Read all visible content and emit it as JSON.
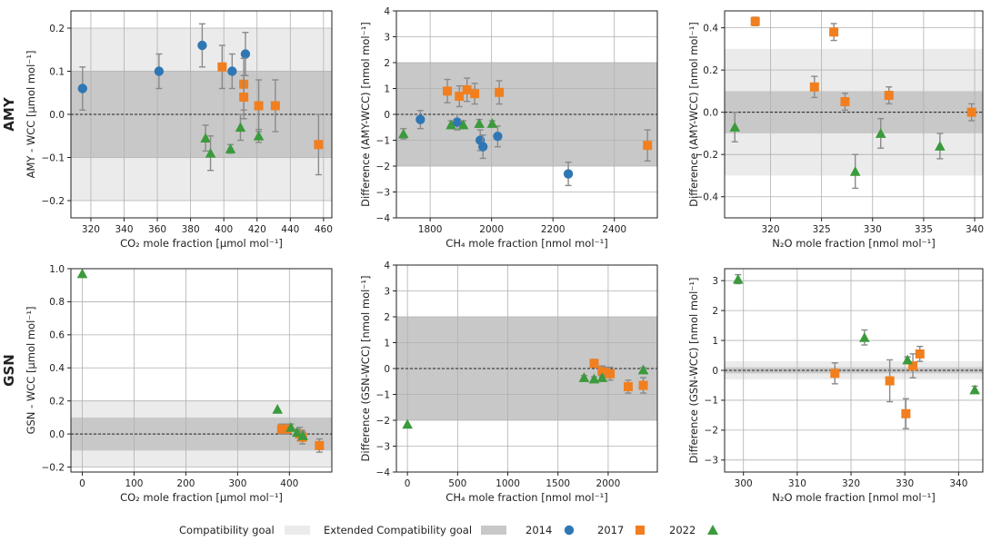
{
  "figure": {
    "row_labels": [
      "AMY",
      "GSN"
    ],
    "colors": {
      "compat_band": "#ebebeb",
      "ext_band": "#c8c8c8",
      "grid": "#b0b0b0",
      "s2014": "#2f77b4",
      "s2017": "#f17f1f",
      "s2022": "#3b9a3b",
      "errorbar": "#8a8a8a"
    },
    "legend": {
      "compat": "Compatibility goal",
      "ext": "Extended Compatibility goal",
      "y2014": "2014",
      "y2017": "2017",
      "y2022": "2022"
    }
  },
  "chart_data": [
    {
      "id": "amy-co2",
      "type": "scatter",
      "ylabel": "AMY - WCC [μmol mol⁻¹]",
      "xlabel": "CO₂ mole fraction [μmol mol⁻¹]",
      "xlim": [
        308,
        465
      ],
      "ylim": [
        -0.24,
        0.24
      ],
      "xticks": [
        320,
        340,
        360,
        380,
        400,
        420,
        440,
        460
      ],
      "yticks": [
        -0.2,
        -0.1,
        0.0,
        0.1,
        0.2
      ],
      "ytick_labels": [
        "−0.2",
        "−0.1",
        "0.0",
        "0.1",
        "0.2"
      ],
      "bands": {
        "compat": 0.2,
        "ext": 0.1
      },
      "series": [
        {
          "name": "2014",
          "marker": "circle",
          "points": [
            [
              315,
              0.06,
              0.05
            ],
            [
              361,
              0.1,
              0.04
            ],
            [
              387,
              0.16,
              0.05
            ],
            [
              405,
              0.1,
              0.04
            ],
            [
              413,
              0.14,
              0.05
            ]
          ]
        },
        {
          "name": "2017",
          "marker": "square",
          "points": [
            [
              399,
              0.11,
              0.05
            ],
            [
              412,
              0.07,
              0.06
            ],
            [
              412,
              0.04,
              0.05
            ],
            [
              421,
              0.02,
              0.06
            ],
            [
              431,
              0.02,
              0.06
            ],
            [
              457,
              -0.07,
              0.07
            ]
          ]
        },
        {
          "name": "2022",
          "marker": "triangle",
          "points": [
            [
              389,
              -0.055,
              0.03
            ],
            [
              392,
              -0.09,
              0.04
            ],
            [
              404,
              -0.08,
              0.01
            ],
            [
              410,
              -0.03,
              0.03
            ],
            [
              421,
              -0.05,
              0.015
            ]
          ]
        }
      ]
    },
    {
      "id": "amy-ch4",
      "type": "scatter",
      "ylabel": "Difference (AMY-WCC) [nmol mol⁻¹]",
      "xlabel": "CH₄ mole fraction [nmol mol⁻¹]",
      "xlim": [
        1690,
        2540
      ],
      "ylim": [
        -4,
        4
      ],
      "xticks": [
        1800,
        2000,
        2200,
        2400
      ],
      "yticks": [
        -4,
        -3,
        -2,
        -1,
        0,
        1,
        2,
        3,
        4
      ],
      "ytick_labels": [
        "−4",
        "−3",
        "−2",
        "−1",
        "0",
        "1",
        "2",
        "3",
        "4"
      ],
      "bands": {
        "compat": 2,
        "ext": 2
      },
      "series": [
        {
          "name": "2014",
          "marker": "circle",
          "points": [
            [
              1768,
              -0.2,
              0.35
            ],
            [
              1888,
              -0.3,
              0.3
            ],
            [
              1963,
              -1.0,
              0.4
            ],
            [
              1972,
              -1.25,
              0.45
            ],
            [
              2020,
              -0.85,
              0.4
            ],
            [
              2250,
              -2.3,
              0.45
            ]
          ]
        },
        {
          "name": "2017",
          "marker": "square",
          "points": [
            [
              1856,
              0.9,
              0.45
            ],
            [
              1895,
              0.7,
              0.4
            ],
            [
              1920,
              0.95,
              0.45
            ],
            [
              1945,
              0.8,
              0.4
            ],
            [
              2025,
              0.85,
              0.45
            ],
            [
              2508,
              -1.2,
              0.6
            ]
          ]
        },
        {
          "name": "2022",
          "marker": "triangle",
          "points": [
            [
              1713,
              -0.75,
              0.2
            ],
            [
              1868,
              -0.4,
              0.15
            ],
            [
              1908,
              -0.4,
              0.15
            ],
            [
              1960,
              -0.35,
              0.15
            ],
            [
              2002,
              -0.35,
              0.1
            ]
          ]
        }
      ]
    },
    {
      "id": "amy-n2o",
      "type": "scatter",
      "ylabel": "Difference (AMY-WCC) [nmol mol⁻¹]",
      "xlabel": "N₂O mole fraction [nmol mol⁻¹]",
      "xlim": [
        315.5,
        340.8
      ],
      "ylim": [
        -0.5,
        0.48
      ],
      "xticks": [
        320,
        325,
        330,
        335,
        340
      ],
      "yticks": [
        -0.4,
        -0.2,
        0.0,
        0.2,
        0.4
      ],
      "ytick_labels": [
        "−0.4",
        "−0.2",
        "0.0",
        "0.2",
        "0.4"
      ],
      "bands": {
        "compat": 0.3,
        "ext": 0.1
      },
      "series": [
        {
          "name": "2017",
          "marker": "square",
          "points": [
            [
              318.5,
              0.43,
              0.02
            ],
            [
              324.3,
              0.12,
              0.05
            ],
            [
              326.2,
              0.38,
              0.04
            ],
            [
              327.3,
              0.05,
              0.04
            ],
            [
              331.6,
              0.08,
              0.04
            ],
            [
              339.7,
              0.0,
              0.04
            ]
          ]
        },
        {
          "name": "2022",
          "marker": "triangle",
          "points": [
            [
              316.5,
              -0.07,
              0.07
            ],
            [
              328.3,
              -0.28,
              0.08
            ],
            [
              330.8,
              -0.1,
              0.07
            ],
            [
              336.6,
              -0.16,
              0.06
            ]
          ]
        }
      ]
    },
    {
      "id": "gsn-co2",
      "type": "scatter",
      "ylabel": "GSN - WCC [μmol mol⁻¹]",
      "xlabel": "CO₂ mole fraction [μmol mol⁻¹]",
      "xlim": [
        -22,
        482
      ],
      "ylim": [
        -0.23,
        1.0
      ],
      "xticks": [
        0,
        100,
        200,
        300,
        400
      ],
      "yticks": [
        -0.2,
        0.0,
        0.2,
        0.4,
        0.6,
        0.8,
        1.0
      ],
      "ytick_labels": [
        "−0.2",
        "0.0",
        "0.2",
        "0.4",
        "0.6",
        "0.8",
        "1.0"
      ],
      "bands": {
        "compat": 0.2,
        "ext": 0.1
      },
      "series": [
        {
          "name": "2017",
          "marker": "square",
          "points": [
            [
              385,
              0.03,
              0.03
            ],
            [
              395,
              0.03,
              0.03
            ],
            [
              420,
              0.0,
              0.04
            ],
            [
              425,
              -0.02,
              0.04
            ],
            [
              458,
              -0.07,
              0.04
            ]
          ]
        },
        {
          "name": "2022",
          "marker": "triangle",
          "points": [
            [
              0,
              0.97,
              0.0
            ],
            [
              377,
              0.15,
              0.0
            ],
            [
              403,
              0.04,
              0.02
            ],
            [
              415,
              0.01,
              0.02
            ],
            [
              426,
              -0.01,
              0.02
            ]
          ]
        }
      ]
    },
    {
      "id": "gsn-ch4",
      "type": "scatter",
      "ylabel": "Difference (GSN-WCC) [nmol mol⁻¹]",
      "xlabel": "CH₄ mole fraction [nmol mol⁻¹]",
      "xlim": [
        -110,
        2490
      ],
      "ylim": [
        -4,
        4
      ],
      "xticks": [
        0,
        500,
        1000,
        1500,
        2000
      ],
      "yticks": [
        -4,
        -3,
        -2,
        -1,
        0,
        1,
        2,
        3,
        4
      ],
      "ytick_labels": [
        "−4",
        "−3",
        "−2",
        "−1",
        "0",
        "1",
        "2",
        "3",
        "4"
      ],
      "bands": {
        "compat": 2,
        "ext": 2
      },
      "series": [
        {
          "name": "2017",
          "marker": "square",
          "points": [
            [
              1860,
              0.2,
              0.15
            ],
            [
              1940,
              -0.1,
              0.2
            ],
            [
              1980,
              -0.15,
              0.2
            ],
            [
              2020,
              -0.2,
              0.25
            ],
            [
              2200,
              -0.7,
              0.25
            ],
            [
              2350,
              -0.65,
              0.3
            ]
          ]
        },
        {
          "name": "2022",
          "marker": "triangle",
          "points": [
            [
              0,
              -2.15,
              0.0
            ],
            [
              1760,
              -0.35,
              0.08
            ],
            [
              1860,
              -0.4,
              0.08
            ],
            [
              1940,
              -0.35,
              0.08
            ],
            [
              2350,
              -0.05,
              0.08
            ]
          ]
        }
      ]
    },
    {
      "id": "gsn-n2o",
      "type": "scatter",
      "ylabel": "Difference (GSN-WCC) [nmol mol⁻¹]",
      "xlabel": "N₂O mole fraction [nmol mol⁻¹]",
      "xlim": [
        296.5,
        344.5
      ],
      "ylim": [
        -3.4,
        3.4
      ],
      "xticks": [
        300,
        310,
        320,
        330,
        340
      ],
      "yticks": [
        -3,
        -2,
        -1,
        0,
        1,
        2,
        3
      ],
      "ytick_labels": [
        "−3",
        "−2",
        "−1",
        "0",
        "1",
        "2",
        "3"
      ],
      "bands": {
        "compat": 0.3,
        "ext": 0.1
      },
      "series": [
        {
          "name": "2017",
          "marker": "square",
          "points": [
            [
              317.0,
              -0.1,
              0.35
            ],
            [
              327.2,
              -0.35,
              0.7
            ],
            [
              330.2,
              -1.45,
              0.5
            ],
            [
              331.5,
              0.15,
              0.4
            ],
            [
              332.8,
              0.55,
              0.25
            ]
          ]
        },
        {
          "name": "2022",
          "marker": "triangle",
          "points": [
            [
              299.0,
              3.05,
              0.15
            ],
            [
              322.5,
              1.1,
              0.25
            ],
            [
              330.5,
              0.35,
              0.1
            ],
            [
              343.0,
              -0.65,
              0.12
            ]
          ]
        }
      ]
    }
  ]
}
